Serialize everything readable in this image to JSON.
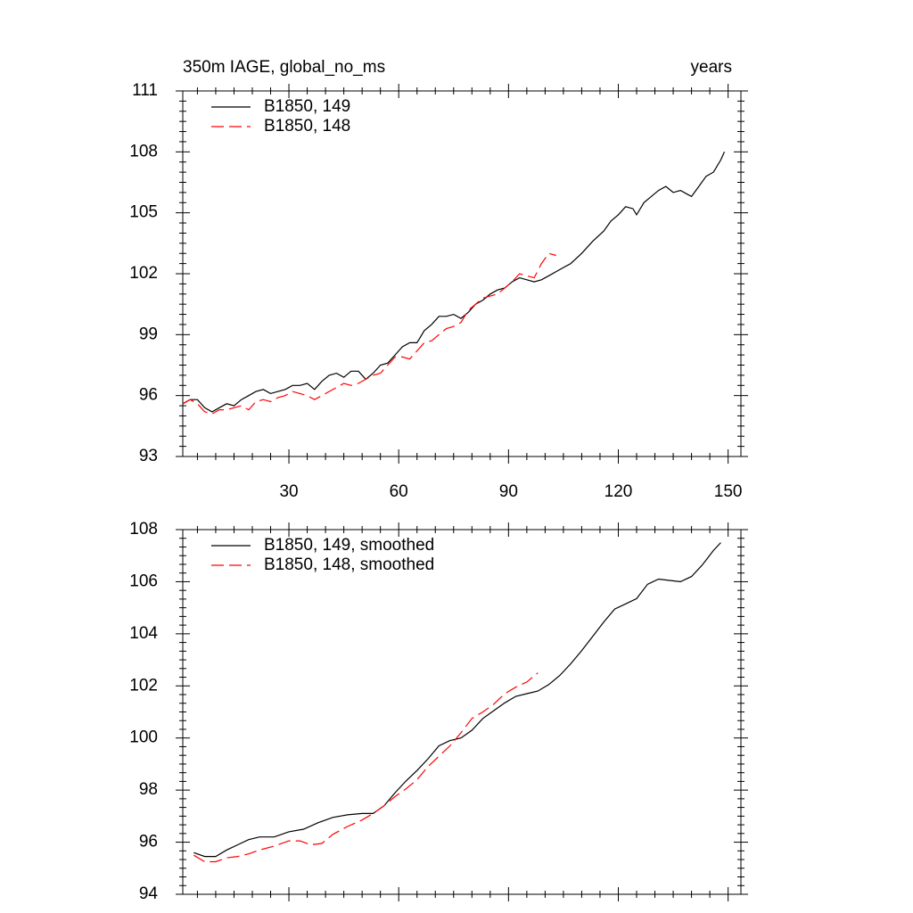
{
  "chart_data": [
    {
      "type": "line",
      "title": "350m IAGE, global_no_ms",
      "subtitle": "years",
      "xlim": [
        1,
        153.5
      ],
      "xticks": [
        30,
        60,
        90,
        120,
        150
      ],
      "ylim": [
        93,
        111
      ],
      "yticks": [
        93,
        96,
        99,
        102,
        105,
        108,
        111
      ],
      "legend": "top-left",
      "series": [
        {
          "name": "B1850, 149",
          "color": "#000000",
          "dash": false,
          "x": [
            1,
            3,
            5,
            7,
            9,
            11,
            13,
            15,
            17,
            19,
            21,
            23,
            25,
            27,
            29,
            31,
            33,
            35,
            37,
            39,
            41,
            43,
            45,
            47,
            49,
            51,
            53,
            55,
            57,
            59,
            61,
            63,
            65,
            67,
            69,
            71,
            73,
            75,
            77,
            79,
            81,
            83,
            85,
            87,
            89,
            91,
            93,
            95,
            97,
            99,
            101,
            104,
            107,
            110,
            113,
            116,
            118,
            120,
            122,
            124,
            125,
            127,
            129,
            131,
            133,
            135,
            137,
            139,
            140,
            142,
            144,
            146,
            148,
            149
          ],
          "values": [
            95.6,
            95.8,
            95.8,
            95.4,
            95.2,
            95.4,
            95.6,
            95.5,
            95.8,
            96.0,
            96.2,
            96.3,
            96.1,
            96.2,
            96.3,
            96.5,
            96.5,
            96.6,
            96.3,
            96.7,
            97.0,
            97.1,
            96.9,
            97.2,
            97.2,
            96.8,
            97.1,
            97.5,
            97.6,
            98.0,
            98.4,
            98.6,
            98.6,
            99.2,
            99.5,
            99.9,
            99.9,
            100.0,
            99.8,
            100.1,
            100.5,
            100.7,
            101.0,
            101.2,
            101.3,
            101.6,
            101.8,
            101.7,
            101.6,
            101.7,
            101.9,
            102.2,
            102.5,
            103.0,
            103.6,
            104.1,
            104.6,
            104.9,
            105.3,
            105.2,
            104.9,
            105.5,
            105.8,
            106.1,
            106.3,
            106.0,
            106.1,
            105.9,
            105.8,
            106.3,
            106.8,
            107.0,
            107.6,
            108.0
          ]
        },
        {
          "name": "B1850, 148",
          "color": "#ff0000",
          "dash": true,
          "x": [
            1,
            3,
            5,
            7,
            9,
            11,
            13,
            15,
            17,
            19,
            21,
            23,
            25,
            27,
            29,
            31,
            33,
            35,
            37,
            39,
            41,
            43,
            45,
            47,
            49,
            51,
            53,
            55,
            57,
            59,
            61,
            63,
            65,
            67,
            69,
            71,
            73,
            75,
            77,
            79,
            81,
            83,
            85,
            87,
            89,
            91,
            93,
            95,
            97,
            99,
            101,
            103
          ],
          "values": [
            95.6,
            95.8,
            95.6,
            95.2,
            95.1,
            95.3,
            95.3,
            95.4,
            95.5,
            95.3,
            95.7,
            95.8,
            95.7,
            95.9,
            96.0,
            96.2,
            96.1,
            96.0,
            95.8,
            96.0,
            96.2,
            96.4,
            96.6,
            96.5,
            96.6,
            96.8,
            97.0,
            97.1,
            97.5,
            97.9,
            97.9,
            97.8,
            98.2,
            98.6,
            98.7,
            99.0,
            99.3,
            99.4,
            99.6,
            100.2,
            100.5,
            100.8,
            100.9,
            101.0,
            101.3,
            101.6,
            102.0,
            101.9,
            101.8,
            102.5,
            103.0,
            102.9
          ]
        }
      ]
    },
    {
      "type": "line",
      "xlim": [
        1,
        153.5
      ],
      "ylim": [
        94,
        108
      ],
      "yticks": [
        94,
        96,
        98,
        100,
        102,
        104,
        106,
        108
      ],
      "legend": "top-left",
      "series": [
        {
          "name": "B1850, 149, smoothed",
          "color": "#000000",
          "dash": false,
          "x": [
            4,
            7,
            10,
            13,
            16,
            19,
            22,
            26,
            30,
            34,
            38,
            42,
            46,
            50,
            53,
            56,
            59,
            62,
            65,
            68,
            71,
            74,
            77,
            80,
            83,
            86,
            89,
            92,
            95,
            98,
            101,
            104,
            107,
            110,
            113,
            116,
            119,
            122,
            125,
            128,
            131,
            134,
            137,
            140,
            143,
            146,
            148
          ],
          "values": [
            95.6,
            95.45,
            95.45,
            95.7,
            95.9,
            96.1,
            96.2,
            96.2,
            96.4,
            96.5,
            96.75,
            96.95,
            97.05,
            97.1,
            97.1,
            97.4,
            97.9,
            98.35,
            98.75,
            99.2,
            99.7,
            99.9,
            100.0,
            100.3,
            100.75,
            101.05,
            101.35,
            101.6,
            101.7,
            101.8,
            102.05,
            102.4,
            102.85,
            103.35,
            103.9,
            104.45,
            104.95,
            105.15,
            105.35,
            105.9,
            106.1,
            106.05,
            106.0,
            106.2,
            106.65,
            107.2,
            107.5
          ]
        },
        {
          "name": "B1850, 148, smoothed",
          "color": "#ff0000",
          "dash": true,
          "x": [
            4,
            7,
            10,
            13,
            16,
            19,
            22,
            26,
            30,
            33,
            36,
            39,
            42,
            46,
            50,
            53,
            56,
            59,
            62,
            65,
            68,
            71,
            74,
            77,
            80,
            83,
            86,
            89,
            92,
            95,
            98
          ],
          "values": [
            95.5,
            95.25,
            95.25,
            95.4,
            95.45,
            95.55,
            95.7,
            95.85,
            96.05,
            96.05,
            95.9,
            95.95,
            96.3,
            96.6,
            96.85,
            97.1,
            97.4,
            97.75,
            98.05,
            98.4,
            98.9,
            99.3,
            99.7,
            100.2,
            100.75,
            101.0,
            101.3,
            101.7,
            101.95,
            102.15,
            102.5
          ]
        }
      ]
    }
  ]
}
